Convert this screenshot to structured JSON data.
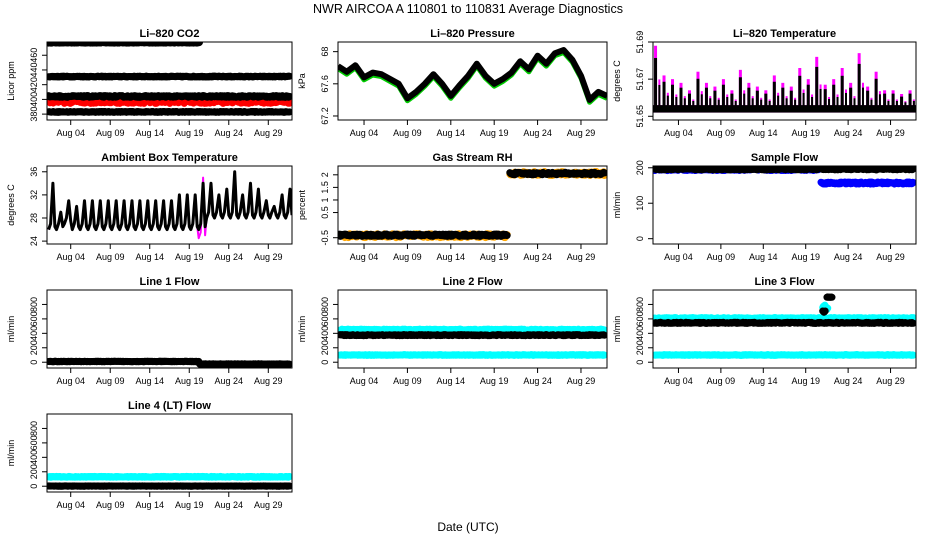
{
  "title": "NWR   AIRCOA A   110801 to 110831   Average Diagnostics",
  "xlabel": "Date (UTC)",
  "x_ticks": [
    "Aug 04",
    "Aug 09",
    "Aug 14",
    "Aug 19",
    "Aug 24",
    "Aug 29"
  ],
  "x_tick_days": [
    4,
    9,
    14,
    19,
    24,
    29
  ],
  "x_range_days": [
    1,
    32
  ],
  "colors": {
    "black": "#000000",
    "red": "#ff0000",
    "green": "#00cc00",
    "magenta": "#ff00ff",
    "orange": "#ffa500",
    "blue": "#0000ff",
    "cyan": "#00ffff"
  },
  "chart_data": [
    {
      "type": "scatter",
      "title": "Li-820 CO2",
      "ylabel": "Licor ppm",
      "ylim": [
        372,
        478
      ],
      "yticks": [
        380,
        400,
        420,
        440,
        460
      ],
      "series": [
        {
          "name": "high",
          "color": "#000000",
          "segments": [
            {
              "x": [
                1.2,
                20.3
              ],
              "y": 477,
              "noise": 0.6
            }
          ]
        },
        {
          "name": "mid",
          "color": "#000000",
          "segments": [
            {
              "x": [
                1.2,
                31.7
              ],
              "y": 431,
              "noise": 0.6
            }
          ]
        },
        {
          "name": "red",
          "color": "#ff0000",
          "segments": [
            {
              "x": [
                1.2,
                31.7
              ],
              "y": 398,
              "noise": 3.5
            }
          ]
        },
        {
          "name": "ref",
          "color": "#000000",
          "segments": [
            {
              "x": [
                1.2,
                31.7
              ],
              "y": 404,
              "noise": 1.2
            }
          ]
        },
        {
          "name": "low",
          "color": "#000000",
          "segments": [
            {
              "x": [
                1.2,
                31.7
              ],
              "y": 383,
              "noise": 0.6
            }
          ]
        }
      ]
    },
    {
      "type": "line",
      "title": "Li-820 Pressure",
      "ylabel": "kPa",
      "ylim": [
        67.15,
        68.12
      ],
      "yticks": [
        67.2,
        67.6,
        68.0
      ],
      "series": [
        {
          "name": "green",
          "color": "#00cc00",
          "offset": -0.03,
          "width": 5,
          "x": [
            1,
            2,
            3,
            4,
            5,
            6,
            7,
            8,
            9,
            10,
            11,
            12,
            13,
            14,
            15,
            16,
            17,
            18,
            19,
            20,
            21,
            22,
            23,
            24,
            25,
            26,
            27,
            28,
            29,
            30,
            31,
            32
          ],
          "y": [
            67.82,
            67.75,
            67.83,
            67.68,
            67.74,
            67.72,
            67.66,
            67.6,
            67.42,
            67.5,
            67.6,
            67.72,
            67.6,
            67.45,
            67.58,
            67.7,
            67.85,
            67.7,
            67.6,
            67.66,
            67.74,
            67.88,
            67.78,
            67.95,
            67.85,
            67.98,
            68.02,
            67.9,
            67.7,
            67.4,
            67.5,
            67.45
          ]
        },
        {
          "name": "black",
          "color": "#000000",
          "offset": 0,
          "width": 6,
          "x": [
            1,
            2,
            3,
            4,
            5,
            6,
            7,
            8,
            9,
            10,
            11,
            12,
            13,
            14,
            15,
            16,
            17,
            18,
            19,
            20,
            21,
            22,
            23,
            24,
            25,
            26,
            27,
            28,
            29,
            30,
            31,
            32
          ],
          "y": [
            67.82,
            67.75,
            67.83,
            67.68,
            67.74,
            67.72,
            67.66,
            67.6,
            67.42,
            67.5,
            67.6,
            67.72,
            67.6,
            67.45,
            67.58,
            67.7,
            67.85,
            67.7,
            67.6,
            67.66,
            67.74,
            67.88,
            67.78,
            67.95,
            67.85,
            67.98,
            68.02,
            67.9,
            67.7,
            67.4,
            67.5,
            67.45
          ]
        }
      ]
    },
    {
      "type": "spikes",
      "title": "Li-820 Temperature",
      "ylabel": "degrees C",
      "ylim": [
        51.648,
        51.69
      ],
      "yticks": [
        51.65,
        51.67,
        51.69
      ],
      "base": 51.655,
      "peaks": [
        51.688,
        51.672,
        51.67,
        51.668,
        51.664,
        51.674,
        51.668,
        51.666,
        51.67,
        51.664,
        51.675,
        51.668,
        51.666,
        51.664,
        51.672,
        51.668,
        51.666,
        51.676,
        51.67,
        51.682,
        51.667,
        51.67,
        51.676,
        51.668,
        51.684,
        51.666,
        51.674,
        51.664,
        51.664,
        51.662,
        51.664
      ],
      "series": [
        {
          "name": "magenta",
          "color": "#ff00ff"
        },
        {
          "name": "black",
          "color": "#000000"
        }
      ]
    },
    {
      "type": "line",
      "title": "Ambient Box Temperature",
      "ylabel": "degrees C",
      "ylim": [
        23.5,
        37
      ],
      "yticks": [
        24,
        28,
        32,
        36
      ],
      "series": [
        {
          "name": "magenta",
          "color": "#ff00ff",
          "offset": 0.3,
          "width": 2,
          "diurnal": true,
          "lows": [
            26,
            26,
            27,
            26,
            26,
            26,
            26,
            26,
            26,
            26,
            26,
            26,
            26,
            26,
            26,
            26,
            26,
            26,
            26,
            24.5,
            28,
            28,
            28,
            28,
            28,
            28,
            28,
            28,
            28,
            28,
            28
          ],
          "highs": [
            34,
            29,
            31,
            30,
            31,
            31,
            31,
            31,
            31,
            31,
            31,
            31,
            31,
            31,
            31,
            31,
            32,
            32,
            32,
            35,
            34,
            32,
            33,
            36,
            32,
            34,
            33,
            31,
            30,
            32,
            33
          ]
        },
        {
          "name": "black",
          "color": "#000000",
          "offset": 0,
          "width": 3,
          "diurnal": true,
          "lows": [
            26,
            26,
            27,
            26,
            26,
            26,
            26,
            26,
            26,
            26,
            26,
            26,
            26,
            26,
            26,
            26,
            26,
            26,
            26,
            26,
            28,
            28,
            28,
            28,
            28,
            28,
            28,
            28,
            28,
            28,
            28
          ],
          "highs": [
            34,
            29,
            31,
            30,
            31,
            31,
            31,
            31,
            31,
            31,
            31,
            31,
            31,
            31,
            31,
            31,
            32,
            32,
            32,
            34,
            34,
            32,
            33,
            36,
            32,
            34,
            33,
            31,
            30,
            32,
            33
          ]
        }
      ]
    },
    {
      "type": "scatter",
      "title": "Gas Stream RH",
      "ylabel": "percent",
      "ylim": [
        -0.75,
        2.35
      ],
      "yticks": [
        -0.5,
        0.5,
        1.0,
        1.5,
        2.0
      ],
      "series": [
        {
          "name": "orange",
          "color": "#ffa500",
          "segments": [
            {
              "x": [
                1.2,
                20.5
              ],
              "y": -0.42,
              "noise": 0.08
            },
            {
              "x": [
                20.8,
                31.7
              ],
              "y": 2.05,
              "noise": 0.08
            }
          ]
        },
        {
          "name": "black",
          "color": "#000000",
          "segments": [
            {
              "x": [
                1.2,
                20.5
              ],
              "y": -0.4,
              "noise": 0.05
            },
            {
              "x": [
                20.8,
                31.7
              ],
              "y": 2.05,
              "noise": 0.05
            }
          ]
        }
      ]
    },
    {
      "type": "scatter",
      "title": "Sample Flow",
      "ylabel": "ml/min",
      "ylim": [
        -15,
        205
      ],
      "yticks": [
        0,
        100,
        200
      ],
      "series": [
        {
          "name": "blue",
          "color": "#0000ff",
          "segments": [
            {
              "x": [
                1.2,
                20.5
              ],
              "y": 195,
              "noise": 3
            },
            {
              "x": [
                20.8,
                31.7
              ],
              "y": 157,
              "noise": 3
            }
          ]
        },
        {
          "name": "black",
          "color": "#000000",
          "segments": [
            {
              "x": [
                1.2,
                31.7
              ],
              "y": 196,
              "noise": 2
            }
          ]
        }
      ]
    },
    {
      "type": "scatter",
      "title": "Line 1 Flow",
      "ylabel": "ml/min",
      "ylim": [
        -80,
        1000
      ],
      "yticks": [
        0,
        200,
        400,
        600,
        800
      ],
      "series": [
        {
          "name": "black",
          "color": "#000000",
          "segments": [
            {
              "x": [
                1.2,
                20.2
              ],
              "y": 10,
              "noise": 4
            },
            {
              "x": [
                20.3,
                31.7
              ],
              "y": -25,
              "noise": 4
            }
          ]
        }
      ]
    },
    {
      "type": "scatter",
      "title": "Line 2 Flow",
      "ylabel": "ml/min",
      "ylim": [
        -80,
        1000
      ],
      "yticks": [
        0,
        200,
        400,
        600,
        800
      ],
      "series": [
        {
          "name": "cyan-high",
          "color": "#00ffff",
          "segments": [
            {
              "x": [
                1.2,
                31.7
              ],
              "y": 450,
              "noise": 8
            }
          ]
        },
        {
          "name": "cyan-low",
          "color": "#00ffff",
          "segments": [
            {
              "x": [
                1.2,
                31.7
              ],
              "y": 100,
              "noise": 5
            }
          ]
        },
        {
          "name": "black",
          "color": "#000000",
          "segments": [
            {
              "x": [
                1.2,
                31.7
              ],
              "y": 375,
              "noise": 8
            }
          ]
        }
      ]
    },
    {
      "type": "scatter",
      "title": "Line 3 Flow",
      "ylabel": "ml/min",
      "ylim": [
        -80,
        1000
      ],
      "yticks": [
        0,
        200,
        400,
        600,
        800
      ],
      "series": [
        {
          "name": "cyan-high",
          "color": "#00ffff",
          "segments": [
            {
              "x": [
                1.2,
                31.7
              ],
              "y": 610,
              "noise": 8
            },
            {
              "x": [
                21.0,
                21.6
              ],
              "y": 760,
              "noise": 40
            }
          ]
        },
        {
          "name": "cyan-low",
          "color": "#00ffff",
          "segments": [
            {
              "x": [
                1.2,
                31.7
              ],
              "y": 100,
              "noise": 5
            }
          ]
        },
        {
          "name": "black",
          "color": "#000000",
          "segments": [
            {
              "x": [
                1.2,
                31.7
              ],
              "y": 545,
              "noise": 8
            },
            {
              "x": [
                21.5,
                22.1
              ],
              "y": 900,
              "noise": 5
            },
            {
              "x": [
                21.0,
                21.3
              ],
              "y": 700,
              "noise": 10
            }
          ]
        }
      ]
    },
    {
      "type": "scatter",
      "title": "Line 4 (LT) Flow",
      "ylabel": "ml/min",
      "ylim": [
        -80,
        1000
      ],
      "yticks": [
        0,
        200,
        400,
        600,
        800
      ],
      "series": [
        {
          "name": "cyan",
          "color": "#00ffff",
          "segments": [
            {
              "x": [
                1.2,
                31.7
              ],
              "y": 130,
              "noise": 6
            }
          ]
        },
        {
          "name": "black",
          "color": "#000000",
          "segments": [
            {
              "x": [
                1.2,
                31.7
              ],
              "y": 2,
              "noise": 3
            }
          ]
        }
      ]
    }
  ]
}
